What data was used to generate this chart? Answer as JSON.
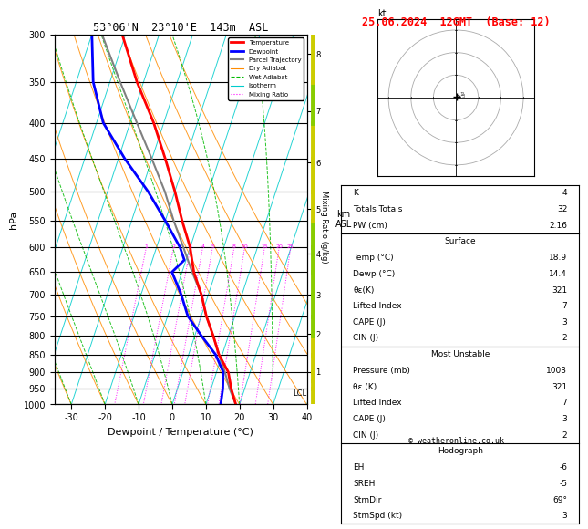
{
  "title_left": "53°06'N  23°10'E  143m  ASL",
  "title_right": "25.06.2024  12GMT  (Base: 12)",
  "xlabel": "Dewpoint / Temperature (°C)",
  "ylabel_left": "hPa",
  "pressure_levels": [
    300,
    350,
    400,
    450,
    500,
    550,
    600,
    650,
    700,
    750,
    800,
    850,
    900,
    950,
    1000
  ],
  "temp_profile_p": [
    1000,
    950,
    900,
    850,
    800,
    750,
    700,
    650,
    600,
    550,
    500,
    450,
    400,
    350,
    300
  ],
  "temp_profile_T": [
    18.9,
    16.0,
    13.5,
    9.0,
    5.5,
    1.5,
    -2.0,
    -6.5,
    -10.0,
    -15.0,
    -20.0,
    -26.0,
    -33.0,
    -42.0,
    -51.0
  ],
  "dewp_profile_p": [
    1000,
    950,
    900,
    850,
    800,
    750,
    700,
    650,
    625,
    600,
    550,
    500,
    450,
    400,
    350,
    300
  ],
  "dewp_profile_T": [
    14.4,
    13.5,
    12.0,
    8.0,
    2.0,
    -4.0,
    -8.0,
    -13.0,
    -10.5,
    -13.0,
    -20.0,
    -28.0,
    -38.0,
    -48.0,
    -55.0,
    -60.0
  ],
  "parcel_profile_p": [
    1000,
    950,
    900,
    850,
    800,
    750,
    700,
    650,
    600,
    550,
    500,
    450,
    400,
    350,
    300
  ],
  "parcel_profile_T": [
    18.9,
    15.5,
    12.5,
    9.0,
    5.5,
    1.5,
    -2.0,
    -7.0,
    -12.0,
    -17.5,
    -23.0,
    -30.0,
    -38.0,
    -47.0,
    -57.0
  ],
  "lcl_pressure": 965,
  "km_asl_ticks": [
    1,
    2,
    3,
    4,
    5,
    6,
    7,
    8
  ],
  "km_asl_pressures": [
    899,
    795,
    700,
    612,
    530,
    455,
    385,
    320
  ],
  "sounding_params": {
    "K": 4,
    "Totals_Totals": 32,
    "PW_cm": 2.16,
    "Surface_Temp": 18.9,
    "Surface_Dewp": 14.4,
    "theta_e_K": 321,
    "Lifted_Index": 7,
    "CAPE_J": 3,
    "CIN_J": 2,
    "MU_Pressure_mb": 1003,
    "MU_theta_e_K": 321,
    "MU_Lifted_Index": 7,
    "MU_CAPE_J": 3,
    "MU_CIN_J": 2,
    "EH": -6,
    "SREH": -5,
    "StmDir": 69,
    "StmSpd_kt": 3
  },
  "colors": {
    "temperature": "#ff0000",
    "dewpoint": "#0000ff",
    "parcel": "#808080",
    "dry_adiabat": "#ff8c00",
    "wet_adiabat": "#00bb00",
    "isotherm": "#00cccc",
    "mixing_ratio": "#ff00ff",
    "background": "#ffffff",
    "grid": "#000000"
  },
  "wind_p_profile": [
    1000,
    950,
    925,
    900,
    850,
    800,
    750,
    700,
    650,
    600,
    550,
    500,
    450,
    400,
    350,
    300
  ],
  "wind_colors": [
    "#cccc00",
    "#cccc00",
    "#cccc00",
    "#cccc00",
    "#cccc00",
    "#88cc00",
    "#88cc00",
    "#88cc00",
    "#88cc00",
    "#88cc00",
    "#cccc00",
    "#cccc00",
    "#cccc00",
    "#88cc00",
    "#cccc00",
    "#cccc00"
  ]
}
